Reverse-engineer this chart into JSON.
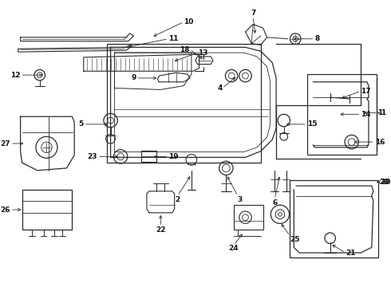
{
  "bg_color": "#ffffff",
  "line_color": "#2a2a2a",
  "text_color": "#111111",
  "fig_w": 4.9,
  "fig_h": 3.6,
  "dpi": 100
}
